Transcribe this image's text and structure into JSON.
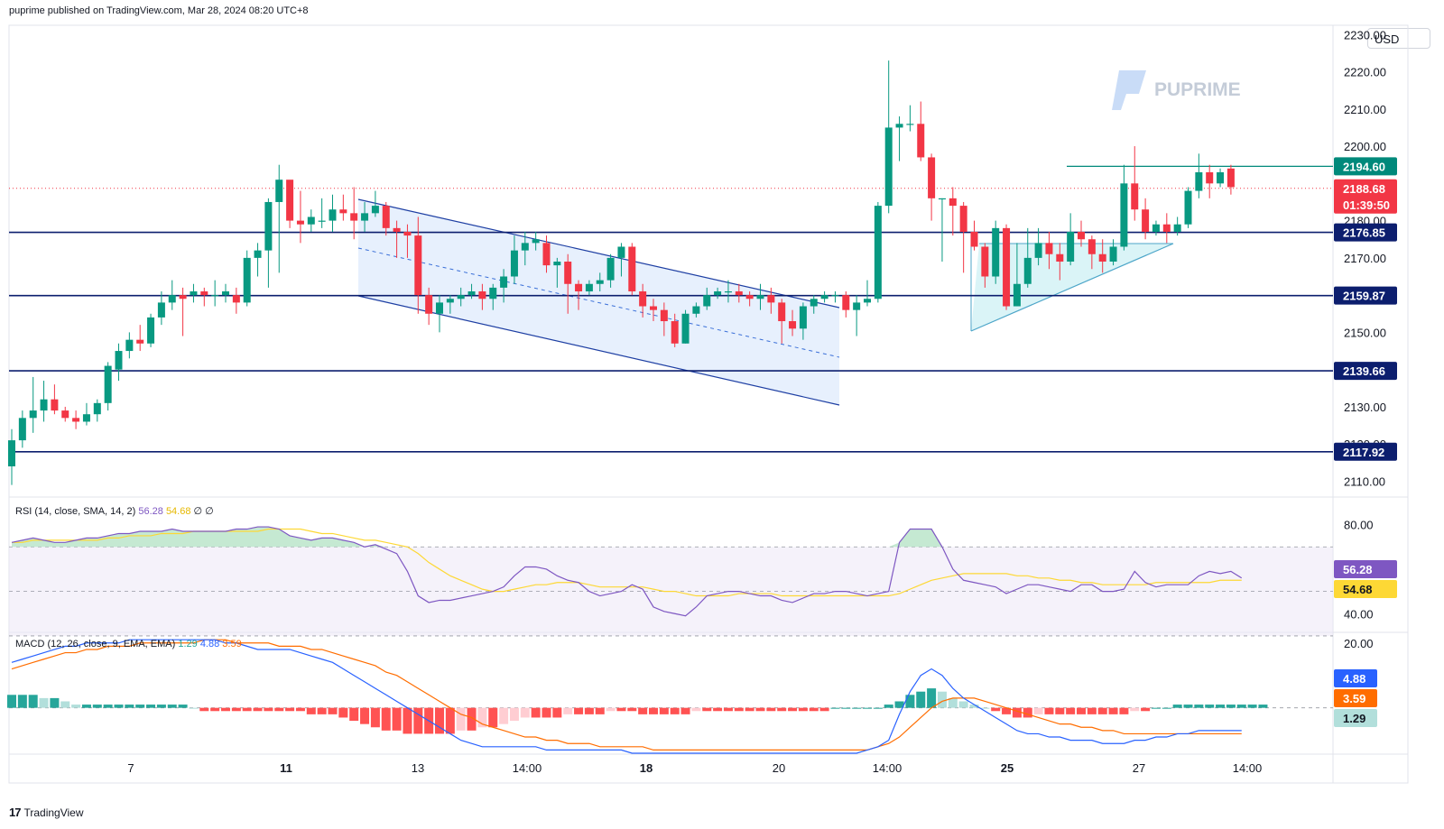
{
  "header": {
    "published": "puprime published on TradingView.com, Mar 28, 2024 08:20 UTC+8"
  },
  "footer": {
    "logo": "TradingView"
  },
  "currency": "USD",
  "watermark": "PUPRIME",
  "colors": {
    "up": "#089981",
    "down": "#f23645",
    "level": "#0c1e6e",
    "rsi": "#7e57c2",
    "rsi_ma": "#fdd835",
    "macd": "#2962ff",
    "signal": "#ff6d00"
  },
  "chart_data": {
    "type": "candlestick",
    "symbol_currency": "USD",
    "price_axis": {
      "ticks": [
        "2230.00",
        "2220.00",
        "2210.00",
        "2200.00",
        "2190.00",
        "2180.00",
        "2170.00",
        "2160.00",
        "2150.00",
        "2140.00",
        "2130.00",
        "2120.00",
        "2110.00"
      ],
      "ylim": [
        2106,
        2232
      ]
    },
    "time_axis": {
      "ticks": [
        "7",
        "11",
        "13",
        "14:00",
        "18",
        "20",
        "14:00",
        "25",
        "27",
        "14:00"
      ]
    },
    "candles": [
      [
        2114,
        2121,
        2109,
        2124
      ],
      [
        2121,
        2127,
        2119,
        2129
      ],
      [
        2127,
        2129,
        2123,
        2138
      ],
      [
        2129,
        2132,
        2126,
        2137
      ],
      [
        2132,
        2129,
        2128,
        2136
      ],
      [
        2129,
        2127,
        2126,
        2130
      ],
      [
        2127,
        2126,
        2124,
        2129
      ],
      [
        2126,
        2128,
        2125,
        2131
      ],
      [
        2128,
        2131,
        2126,
        2132
      ],
      [
        2131,
        2141,
        2129,
        2142
      ],
      [
        2140,
        2145,
        2137,
        2147
      ],
      [
        2145,
        2148,
        2143,
        2150
      ],
      [
        2148,
        2147,
        2145,
        2152
      ],
      [
        2147,
        2154,
        2146,
        2155
      ],
      [
        2154,
        2158,
        2152,
        2161
      ],
      [
        2158,
        2160,
        2156,
        2164
      ],
      [
        2160,
        2159,
        2149,
        2162
      ],
      [
        2160,
        2161,
        2158,
        2163
      ],
      [
        2161,
        2160,
        2157,
        2162
      ],
      [
        2160,
        2160,
        2157,
        2164
      ],
      [
        2160,
        2161,
        2158,
        2163
      ],
      [
        2160,
        2158,
        2155,
        2162
      ],
      [
        2158,
        2170,
        2157,
        2172
      ],
      [
        2170,
        2172,
        2165,
        2174
      ],
      [
        2172,
        2185,
        2162,
        2186
      ],
      [
        2185,
        2191,
        2166,
        2195
      ],
      [
        2191,
        2180,
        2178,
        2190
      ],
      [
        2180,
        2179,
        2174,
        2188
      ],
      [
        2179,
        2181,
        2177,
        2183
      ],
      [
        2180,
        2180,
        2178,
        2186
      ],
      [
        2180,
        2183,
        2177,
        2187
      ],
      [
        2183,
        2182,
        2180,
        2187
      ],
      [
        2182,
        2180,
        2175,
        2189
      ],
      [
        2180,
        2182,
        2177,
        2185
      ],
      [
        2182,
        2184,
        2181,
        2188
      ],
      [
        2184,
        2178,
        2176,
        2185
      ],
      [
        2178,
        2177,
        2170,
        2180
      ],
      [
        2177,
        2176,
        2170,
        2179
      ],
      [
        2176,
        2160,
        2155,
        2181
      ],
      [
        2160,
        2155,
        2152,
        2162
      ],
      [
        2155,
        2158,
        2150,
        2160
      ],
      [
        2158,
        2159,
        2155,
        2160
      ],
      [
        2159,
        2160,
        2157,
        2162
      ],
      [
        2160,
        2161,
        2159,
        2163
      ],
      [
        2161,
        2159,
        2156,
        2163
      ],
      [
        2159,
        2162,
        2156,
        2163
      ],
      [
        2162,
        2165,
        2158,
        2167
      ],
      [
        2165,
        2172,
        2163,
        2176
      ],
      [
        2172,
        2174,
        2168,
        2177
      ],
      [
        2174,
        2175,
        2172,
        2177
      ],
      [
        2174,
        2168,
        2166,
        2176
      ],
      [
        2168,
        2169,
        2162,
        2170
      ],
      [
        2169,
        2163,
        2155,
        2171
      ],
      [
        2163,
        2161,
        2156,
        2164
      ],
      [
        2161,
        2163,
        2160,
        2164
      ],
      [
        2163,
        2164,
        2161,
        2166
      ],
      [
        2164,
        2170,
        2162,
        2171
      ],
      [
        2170,
        2173,
        2165,
        2174
      ],
      [
        2173,
        2161,
        2160,
        2174
      ],
      [
        2161,
        2157,
        2154,
        2163
      ],
      [
        2157,
        2156,
        2153,
        2159
      ],
      [
        2156,
        2153,
        2149,
        2158
      ],
      [
        2153,
        2147,
        2146,
        2155
      ],
      [
        2147,
        2155,
        2147,
        2156
      ],
      [
        2155,
        2157,
        2154,
        2158
      ],
      [
        2157,
        2160,
        2156,
        2162
      ],
      [
        2160,
        2161,
        2159,
        2162
      ],
      [
        2161,
        2161,
        2158,
        2164
      ],
      [
        2161,
        2160,
        2158,
        2163
      ],
      [
        2160,
        2159,
        2157,
        2161
      ],
      [
        2159,
        2160,
        2156,
        2163
      ],
      [
        2160,
        2158,
        2155,
        2162
      ],
      [
        2158,
        2153,
        2147,
        2159
      ],
      [
        2153,
        2151,
        2149,
        2156
      ],
      [
        2151,
        2157,
        2148,
        2158
      ],
      [
        2157,
        2159,
        2155,
        2160
      ],
      [
        2159,
        2160,
        2158,
        2161
      ],
      [
        2160,
        2160,
        2158,
        2161
      ],
      [
        2160,
        2156,
        2154,
        2161
      ],
      [
        2156,
        2158,
        2149,
        2160
      ],
      [
        2158,
        2159,
        2157,
        2164
      ],
      [
        2159,
        2184,
        2158,
        2185
      ],
      [
        2184,
        2205,
        2182,
        2223
      ],
      [
        2205,
        2206,
        2196,
        2208
      ],
      [
        2206,
        2206,
        2204,
        2211
      ],
      [
        2206,
        2197,
        2196,
        2212
      ],
      [
        2197,
        2186,
        2180,
        2198
      ],
      [
        2186,
        2186,
        2169,
        2186
      ],
      [
        2186,
        2184,
        2176,
        2189
      ],
      [
        2184,
        2177,
        2166,
        2185
      ],
      [
        2177,
        2173,
        2172,
        2180
      ],
      [
        2173,
        2165,
        2162,
        2174
      ],
      [
        2165,
        2178,
        2163,
        2180
      ],
      [
        2178,
        2157,
        2156,
        2179
      ],
      [
        2157,
        2163,
        2157,
        2174
      ],
      [
        2163,
        2170,
        2162,
        2178
      ],
      [
        2170,
        2174,
        2168,
        2178
      ],
      [
        2174,
        2171,
        2167,
        2177
      ],
      [
        2171,
        2169,
        2164,
        2174
      ],
      [
        2169,
        2177,
        2168,
        2182
      ],
      [
        2177,
        2175,
        2173,
        2180
      ],
      [
        2175,
        2171,
        2167,
        2176
      ],
      [
        2171,
        2169,
        2166,
        2175
      ],
      [
        2169,
        2173,
        2168,
        2175
      ],
      [
        2173,
        2190,
        2172,
        2195
      ],
      [
        2190,
        2183,
        2180,
        2200
      ],
      [
        2183,
        2177,
        2175,
        2186
      ],
      [
        2177,
        2179,
        2176,
        2180
      ],
      [
        2179,
        2177,
        2174,
        2182
      ],
      [
        2177,
        2179,
        2176,
        2181
      ],
      [
        2179,
        2188,
        2178,
        2189
      ],
      [
        2188,
        2193,
        2186,
        2198
      ],
      [
        2193,
        2190,
        2186,
        2195
      ],
      [
        2190,
        2193,
        2189,
        2194
      ],
      [
        2194,
        2189,
        2187,
        2195
      ]
    ],
    "current_price": 2188.68,
    "countdown": "01:39:50",
    "levels": [
      {
        "name": "2194.60",
        "value": 2194.6,
        "color": "#00897b"
      },
      {
        "name": "2176.85",
        "value": 2176.85,
        "color": "#0c1e6e"
      },
      {
        "name": "2159.87",
        "value": 2159.87,
        "color": "#0c1e6e"
      },
      {
        "name": "2139.66",
        "value": 2139.66,
        "color": "#0c1e6e"
      },
      {
        "name": "2117.92",
        "value": 2117.92,
        "color": "#0c1e6e"
      }
    ],
    "price_labels": [
      "2194.60",
      "2188.68",
      "2176.85",
      "2159.87",
      "2139.66",
      "2117.92"
    ],
    "rsi": {
      "legend": "RSI (14, close, SMA, 14, 2)",
      "value": "56.28",
      "ma_value": "54.68",
      "extra": "∅ ∅",
      "axis_ticks": [
        "80.00",
        "60.00",
        "40.00"
      ],
      "ylim": [
        32,
        92
      ],
      "bands": [
        70,
        30
      ],
      "rsi_values": [
        72,
        73,
        74,
        73,
        72,
        72,
        73,
        74,
        74,
        75,
        76,
        76,
        77,
        77,
        77,
        78,
        77,
        77,
        77,
        77,
        77,
        78,
        78,
        79,
        79,
        78,
        75,
        74,
        73,
        74,
        74,
        73,
        72,
        70,
        71,
        69,
        67,
        59,
        48,
        45,
        46,
        46,
        47,
        48,
        49,
        50,
        52,
        57,
        61,
        61,
        60,
        57,
        55,
        54,
        50,
        48,
        49,
        50,
        53,
        51,
        43,
        41,
        40,
        39,
        43,
        48,
        49,
        50,
        50,
        49,
        48,
        48,
        46,
        45,
        47,
        49,
        49,
        50,
        50,
        49,
        48,
        49,
        50,
        72,
        78,
        78,
        78,
        70,
        60,
        55,
        54,
        53,
        52,
        49,
        51,
        53,
        53,
        52,
        51,
        50,
        53,
        53,
        50,
        50,
        51,
        59,
        54,
        52,
        53,
        53,
        53,
        57,
        59,
        58,
        59,
        56
      ],
      "rsi_ma_values": [
        72,
        72,
        73,
        73,
        73,
        73,
        73,
        73,
        73,
        74,
        74,
        75,
        75,
        75,
        76,
        76,
        76,
        77,
        77,
        77,
        77,
        77,
        77,
        77,
        78,
        78,
        78,
        78,
        77,
        76,
        76,
        75,
        74,
        73,
        73,
        72,
        71,
        70,
        67,
        63,
        60,
        57,
        55,
        53,
        51,
        50,
        50,
        51,
        52,
        53,
        53,
        54,
        54,
        54,
        53,
        52,
        52,
        52,
        52,
        52,
        51,
        50,
        50,
        49,
        48,
        48,
        48,
        48,
        49,
        49,
        49,
        49,
        48,
        48,
        48,
        48,
        48,
        48,
        48,
        48,
        48,
        48,
        48,
        49,
        51,
        53,
        55,
        56,
        57,
        58,
        58,
        58,
        58,
        58,
        57,
        57,
        56,
        56,
        55,
        55,
        54,
        54,
        53,
        53,
        53,
        53,
        53,
        54,
        54,
        54,
        54,
        54,
        54,
        55,
        55,
        55
      ]
    },
    "macd": {
      "legend": "MACD (12, 26, close, 9, EMA, EMA)",
      "values": [
        "1.29",
        "4.88",
        "3.59"
      ],
      "axis_ticks": [
        "20.00"
      ],
      "ylim": [
        -14,
        23
      ],
      "macd_values": [
        14,
        15,
        16,
        17,
        18,
        19,
        19,
        20,
        20,
        20,
        20,
        21,
        21,
        21,
        21,
        21,
        21,
        21,
        21,
        21,
        20,
        20,
        19,
        18,
        18,
        18,
        18,
        17,
        16,
        15,
        14,
        12,
        10,
        8,
        6,
        4,
        2,
        0,
        -2,
        -4,
        -6,
        -8,
        -10,
        -11,
        -12,
        -12,
        -12,
        -12,
        -12,
        -12,
        -13,
        -13,
        -13,
        -13,
        -13,
        -13,
        -13,
        -13,
        -14,
        -14,
        -14,
        -14,
        -14,
        -14,
        -14,
        -14,
        -14,
        -14,
        -14,
        -14,
        -14,
        -14,
        -14,
        -14,
        -14,
        -14,
        -14,
        -14,
        -14,
        -14,
        -13,
        -12,
        -10,
        -2,
        5,
        10,
        12,
        10,
        6,
        3,
        1,
        -1,
        -3,
        -5,
        -7,
        -8,
        -8,
        -9,
        -9,
        -10,
        -10,
        -10,
        -11,
        -11,
        -11,
        -10,
        -10,
        -9,
        -9,
        -8,
        -8,
        -7,
        -7,
        -7,
        -7,
        -7
      ],
      "signal_values": [
        12,
        13,
        14,
        15,
        16,
        17,
        17,
        18,
        18,
        19,
        19,
        19,
        20,
        20,
        20,
        20,
        20,
        20,
        21,
        21,
        21,
        20,
        20,
        20,
        20,
        19,
        19,
        19,
        18,
        18,
        17,
        16,
        15,
        14,
        13,
        11,
        10,
        8,
        6,
        4,
        2,
        0,
        -2,
        -3,
        -5,
        -6,
        -7,
        -8,
        -9,
        -9,
        -10,
        -10,
        -11,
        -11,
        -11,
        -12,
        -12,
        -12,
        -12,
        -12,
        -13,
        -13,
        -13,
        -13,
        -13,
        -13,
        -13,
        -13,
        -13,
        -13,
        -13,
        -13,
        -13,
        -13,
        -13,
        -13,
        -13,
        -13,
        -13,
        -13,
        -13,
        -12,
        -11,
        -9,
        -6,
        -3,
        0,
        2,
        3,
        3,
        3,
        2,
        1,
        0,
        -1,
        -2,
        -3,
        -4,
        -5,
        -5,
        -6,
        -6,
        -7,
        -7,
        -8,
        -8,
        -8,
        -8,
        -8,
        -8,
        -8,
        -8,
        -8,
        -8,
        -8,
        -8
      ],
      "hist_values": [
        4,
        4,
        4,
        3,
        3,
        2,
        1,
        1,
        1,
        1,
        1,
        1,
        1,
        1,
        1,
        1,
        1,
        0,
        -1,
        -1,
        -1,
        -1,
        -1,
        -1,
        -1,
        -1,
        -1,
        -1,
        -2,
        -2,
        -2,
        -3,
        -4,
        -5,
        -6,
        -7,
        -7,
        -8,
        -8,
        -8,
        -8,
        -8,
        -7,
        -7,
        -6,
        -6,
        -5,
        -4,
        -3,
        -3,
        -3,
        -3,
        -2,
        -2,
        -2,
        -2,
        -1,
        -1,
        -1,
        -2,
        -2,
        -2,
        -2,
        -2,
        -1,
        -1,
        -1,
        -1,
        -1,
        -1,
        -1,
        -1,
        -1,
        -1,
        -1,
        -1,
        -1,
        0,
        0,
        0,
        0,
        0,
        1,
        2,
        4,
        5,
        6,
        5,
        3,
        2,
        1,
        0,
        -1,
        -2,
        -3,
        -3,
        -2,
        -2,
        -2,
        -2,
        -2,
        -2,
        -2,
        -2,
        -2,
        -1,
        -1,
        0,
        0,
        1,
        1,
        1,
        1,
        1,
        1,
        1,
        1,
        1
      ]
    },
    "annotations": [
      {
        "type": "descending-channel"
      },
      {
        "type": "ascending-triangle"
      }
    ]
  }
}
